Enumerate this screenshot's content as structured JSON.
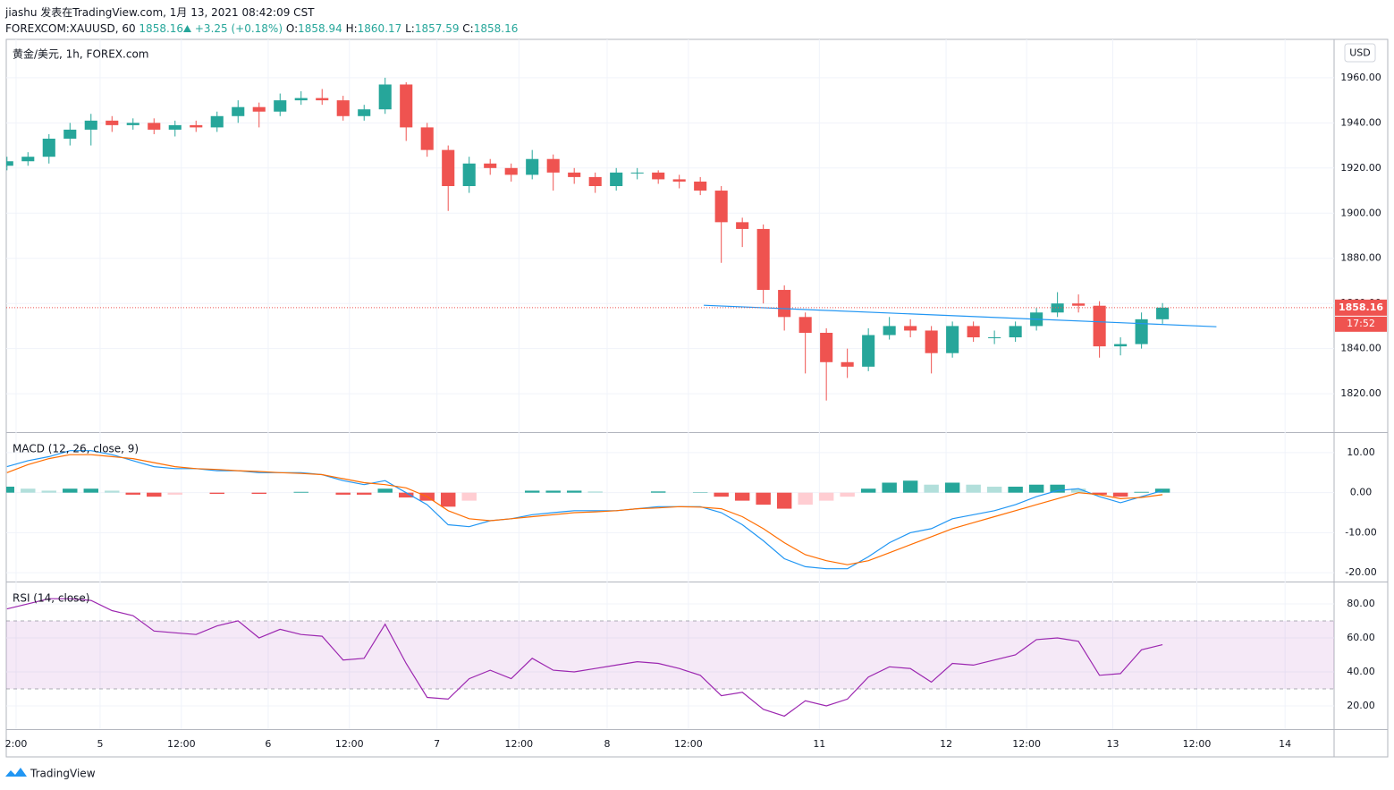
{
  "header": {
    "byline": "jiashu 发表在TradingView.com, 1月 13, 2021 08:42:09 CST",
    "symbol": "FOREXCOM:XAUUSD, 60",
    "last": "1858.16",
    "change": "+3.25 (+0.18%)",
    "ohlc": [
      {
        "label": "O:",
        "value": "1858.94"
      },
      {
        "label": "H:",
        "value": "1860.17"
      },
      {
        "label": "L:",
        "value": "1857.59"
      },
      {
        "label": "C:",
        "value": "1858.16"
      }
    ]
  },
  "footer": {
    "brand": "TradingView"
  },
  "chart_data": [
    {
      "type": "candlestick",
      "title": "黄金/美元, 1h, FOREX.com",
      "currency": "USD",
      "x": [
        0,
        3,
        6,
        9,
        12,
        15,
        18,
        21,
        24,
        27,
        30,
        33,
        36,
        39,
        42,
        45,
        48,
        51,
        54,
        57,
        60,
        63,
        66,
        69,
        72,
        75,
        78,
        81,
        84,
        87,
        90,
        93,
        96,
        99,
        102,
        105,
        108,
        111,
        114,
        117,
        120,
        123,
        126,
        129,
        132,
        135,
        138,
        141,
        144,
        147,
        150,
        153,
        156,
        159,
        162,
        165
      ],
      "open": [
        1921,
        1923,
        1925,
        1933,
        1937,
        1941,
        1939,
        1940,
        1937,
        1939,
        1938,
        1943,
        1947,
        1945,
        1950,
        1951,
        1950,
        1943,
        1946,
        1957,
        1938,
        1928,
        1912,
        1922,
        1920,
        1917,
        1924,
        1918,
        1916,
        1912,
        1918,
        1918,
        1915,
        1914,
        1910,
        1896,
        1893,
        1866,
        1854,
        1847,
        1834,
        1832,
        1846,
        1850,
        1848,
        1838,
        1850,
        1845,
        1845,
        1850,
        1856,
        1860,
        1859,
        1841,
        1842,
        1853
      ],
      "high": [
        1925,
        1927,
        1935,
        1940,
        1944,
        1943,
        1942,
        1942,
        1941,
        1941,
        1945,
        1950,
        1949,
        1953,
        1954,
        1955,
        1952,
        1948,
        1960,
        1958,
        1940,
        1930,
        1925,
        1924,
        1922,
        1928,
        1926,
        1920,
        1918,
        1920,
        1920,
        1919,
        1917,
        1916,
        1912,
        1898,
        1895,
        1868,
        1856,
        1849,
        1840,
        1849,
        1854,
        1853,
        1850,
        1852,
        1852,
        1848,
        1852,
        1858,
        1865,
        1864,
        1861,
        1845,
        1856,
        1860.17
      ],
      "low": [
        1919,
        1921,
        1922,
        1930,
        1930,
        1936,
        1937,
        1935,
        1934,
        1936,
        1936,
        1940,
        1938,
        1943,
        1948,
        1948,
        1941,
        1941,
        1944,
        1932,
        1925,
        1901,
        1909,
        1917,
        1914,
        1915,
        1910,
        1913,
        1909,
        1910,
        1915,
        1913,
        1911,
        1908,
        1878,
        1885,
        1860,
        1848,
        1829,
        1817,
        1827,
        1830,
        1844,
        1845,
        1829,
        1836,
        1843,
        1842,
        1843,
        1848,
        1854,
        1856,
        1836,
        1837,
        1840,
        1851
      ],
      "close": [
        1923,
        1925,
        1933,
        1937,
        1941,
        1939,
        1940,
        1937,
        1939,
        1938,
        1943,
        1947,
        1945,
        1950,
        1951,
        1950,
        1943,
        1946,
        1957,
        1938,
        1928,
        1912,
        1922,
        1920,
        1917,
        1924,
        1918,
        1916,
        1912,
        1918,
        1918,
        1915,
        1914,
        1910,
        1896,
        1893,
        1866,
        1854,
        1847,
        1834,
        1832,
        1846,
        1850,
        1848,
        1838,
        1850,
        1845,
        1845,
        1850,
        1856,
        1860,
        1859,
        1841,
        1842,
        1853,
        1858.16
      ],
      "up_color": "#26a69a",
      "down_color": "#ef5350",
      "ylim": [
        1803,
        1977
      ],
      "yticks": [
        {
          "value": 1820,
          "label": "1820.00"
        },
        {
          "value": 1840,
          "label": "1840.00"
        },
        {
          "value": 1860,
          "label": "1860.00"
        },
        {
          "value": 1880,
          "label": "1880.00"
        },
        {
          "value": 1900,
          "label": "1900.00"
        },
        {
          "value": 1920,
          "label": "1920.00"
        },
        {
          "value": 1940,
          "label": "1940.00"
        },
        {
          "value": 1960,
          "label": "1960.00"
        }
      ],
      "xlim": [
        -0.1,
        189.5
      ],
      "xticks": [
        {
          "value": 1.3,
          "label": "2:00"
        },
        {
          "value": 13.3,
          "label": "5"
        },
        {
          "value": 24.9,
          "label": "12:00"
        },
        {
          "value": 37.3,
          "label": "6"
        },
        {
          "value": 48.9,
          "label": "12:00"
        },
        {
          "value": 61.4,
          "label": "7"
        },
        {
          "value": 73.1,
          "label": "12:00"
        },
        {
          "value": 85.7,
          "label": "8"
        },
        {
          "value": 97.3,
          "label": "12:00"
        },
        {
          "value": 116,
          "label": "11"
        },
        {
          "value": 134.1,
          "label": "12"
        },
        {
          "value": 145.6,
          "label": "12:00"
        },
        {
          "value": 157.9,
          "label": "13"
        },
        {
          "value": 169.9,
          "label": "12:00"
        },
        {
          "value": 182.5,
          "label": "14"
        }
      ],
      "grid": true,
      "last_price": {
        "value": 1858.16,
        "label": "1858.16",
        "color": "#ef5350"
      },
      "countdown": "17:52",
      "trendline": {
        "x": [
          99.5,
          172.7
        ],
        "y": [
          1859.2,
          1849.7
        ],
        "color": "#2196f3"
      }
    },
    {
      "type": "macd",
      "title": "MACD (12, 26, close, 9)",
      "x": [
        0,
        3,
        6,
        9,
        12,
        15,
        18,
        21,
        24,
        27,
        30,
        33,
        36,
        39,
        42,
        45,
        48,
        51,
        54,
        57,
        60,
        63,
        66,
        69,
        72,
        75,
        78,
        81,
        84,
        87,
        90,
        93,
        96,
        99,
        102,
        105,
        108,
        111,
        114,
        117,
        120,
        123,
        126,
        129,
        132,
        135,
        138,
        141,
        144,
        147,
        150,
        153,
        156,
        159,
        162,
        165
      ],
      "series": [
        {
          "color": "#2196f3",
          "values": [
            6.5,
            8,
            9,
            10.5,
            10.5,
            9.5,
            8,
            6.5,
            6,
            6,
            5.5,
            5.5,
            5,
            5,
            5,
            4.5,
            3,
            2,
            3,
            0,
            -3,
            -8,
            -8.5,
            -7,
            -6.5,
            -5.5,
            -5,
            -4.5,
            -4.5,
            -4.5,
            -4,
            -3.5,
            -3.5,
            -3.5,
            -5,
            -8,
            -12,
            -16.5,
            -18.5,
            -19,
            -19,
            -16,
            -12.5,
            -10,
            -9,
            -6.5,
            -5.5,
            -4.5,
            -3,
            -1,
            0.5,
            1,
            -1,
            -2.5,
            -1,
            0.5
          ]
        },
        {
          "color": "#ff6d00",
          "values": [
            5,
            7,
            8.5,
            9.5,
            9.5,
            9,
            8.5,
            7.5,
            6.5,
            6,
            5.8,
            5.5,
            5.3,
            5,
            4.8,
            4.5,
            3.5,
            2.5,
            2,
            1.2,
            -1,
            -4.5,
            -6.5,
            -7,
            -6.5,
            -6,
            -5.5,
            -5,
            -4.8,
            -4.5,
            -4,
            -3.8,
            -3.5,
            -3.6,
            -4,
            -6,
            -9,
            -12.5,
            -15.5,
            -17,
            -18,
            -17,
            -15,
            -13,
            -11,
            -9,
            -7.5,
            -6,
            -4.5,
            -3,
            -1.5,
            0,
            -0.5,
            -1.5,
            -1.2,
            -0.5
          ]
        }
      ],
      "histogram": {
        "values": [
          1.5,
          1,
          0.5,
          1,
          1,
          0.5,
          -0.5,
          -1,
          -0.5,
          0,
          -0.3,
          0,
          -0.3,
          0,
          0.2,
          0,
          -0.5,
          -0.5,
          1,
          -1.2,
          -2,
          -3.5,
          -2,
          0,
          0,
          0.5,
          0.5,
          0.5,
          0.3,
          0,
          0,
          0.3,
          0,
          0.1,
          -1,
          -2,
          -3,
          -4,
          -3,
          -2,
          -1,
          1,
          2.5,
          3,
          2,
          2.5,
          2,
          1.5,
          1.5,
          2,
          2,
          1,
          -0.5,
          -1,
          0.2,
          1
        ],
        "colors": [
          "#26a69a",
          "#b2dfdb",
          "#ef5350",
          "#ffcdd2"
        ]
      },
      "ylim": [
        -22.2,
        14.9
      ],
      "yticks": [
        {
          "value": -20,
          "label": "-20.00"
        },
        {
          "value": -10,
          "label": "-10.00"
        },
        {
          "value": 0,
          "label": "0.00"
        },
        {
          "value": 10,
          "label": "10.00"
        }
      ]
    },
    {
      "type": "rsi",
      "title": "RSI (14, close)",
      "x": [
        0,
        3,
        6,
        9,
        12,
        15,
        18,
        21,
        24,
        27,
        30,
        33,
        36,
        39,
        42,
        45,
        48,
        51,
        54,
        57,
        60,
        63,
        66,
        69,
        72,
        75,
        78,
        81,
        84,
        87,
        90,
        93,
        96,
        99,
        102,
        105,
        108,
        111,
        114,
        117,
        120,
        123,
        126,
        129,
        132,
        135,
        138,
        141,
        144,
        147,
        150,
        153,
        156,
        159,
        162,
        165
      ],
      "values": [
        77,
        80,
        83,
        83,
        82,
        76,
        73,
        64,
        63,
        62,
        67,
        70,
        60,
        65,
        62,
        61,
        47,
        48,
        68,
        45,
        25,
        24,
        36,
        41,
        36,
        48,
        41,
        40,
        42,
        44,
        46,
        45,
        42,
        38,
        26,
        28,
        18,
        14,
        23,
        20,
        24,
        37,
        43,
        42,
        34,
        45,
        44,
        47,
        50,
        59,
        60,
        58,
        38,
        39,
        53,
        56
      ],
      "color": "#9c27b0",
      "upper_band": 70,
      "lower_band": 30,
      "band_color": "#9c27b0",
      "ylim": [
        6.3,
        92.6
      ],
      "yticks": [
        {
          "value": 20,
          "label": "20.00"
        },
        {
          "value": 40,
          "label": "40.00"
        },
        {
          "value": 60,
          "label": "60.00"
        },
        {
          "value": 80,
          "label": "80.00"
        }
      ]
    }
  ]
}
